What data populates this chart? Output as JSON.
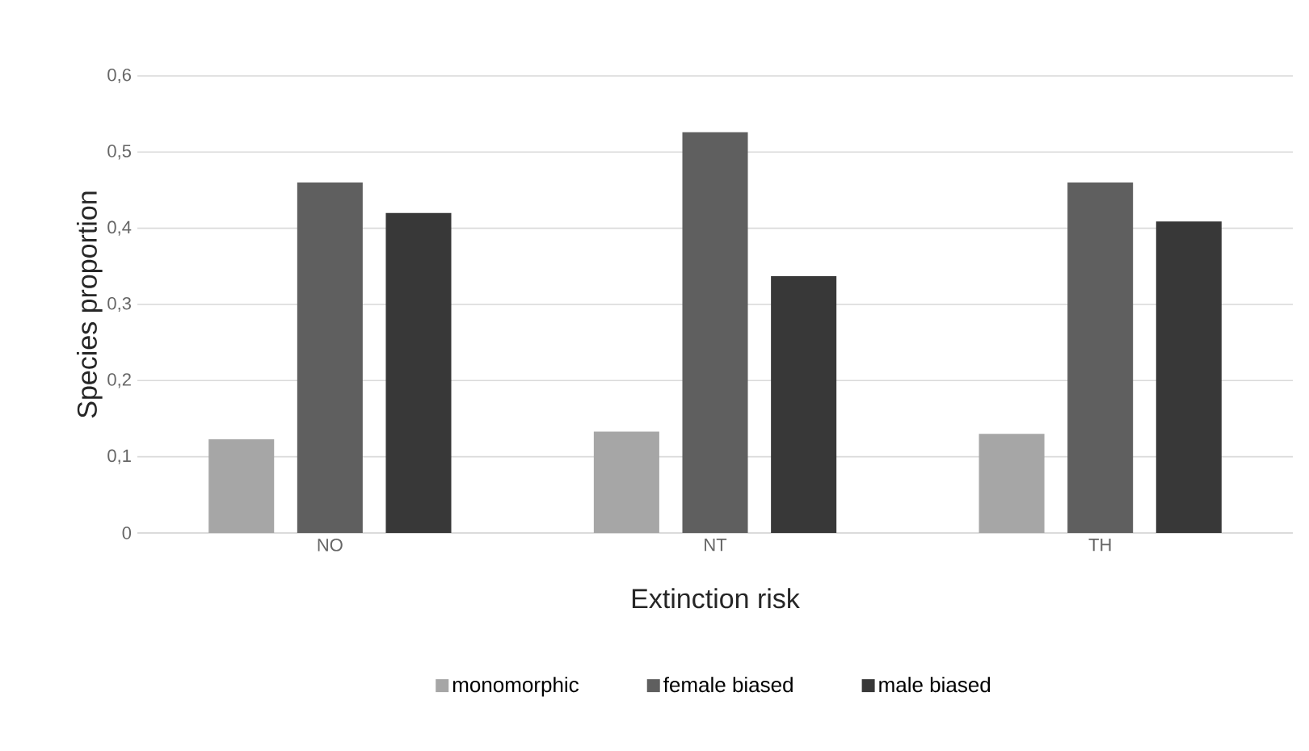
{
  "chart_data": {
    "type": "bar",
    "xlabel": "Extinction risk",
    "ylabel": "Species proportion",
    "categories": [
      "NO",
      "NT",
      "TH"
    ],
    "series": [
      {
        "name": "monomorphic",
        "color": "#a6a6a6",
        "values": [
          0.123,
          0.133,
          0.13
        ]
      },
      {
        "name": "female biased",
        "color": "#5f5f5f",
        "values": [
          0.46,
          0.526,
          0.46
        ]
      },
      {
        "name": "male biased",
        "color": "#383838",
        "values": [
          0.42,
          0.337,
          0.409
        ]
      }
    ],
    "ylim": [
      0,
      0.6
    ],
    "yticks": [
      0,
      {
        "value": 0.1,
        "label": "0,1"
      },
      {
        "value": 0.2,
        "label": "0,2"
      },
      {
        "value": 0.3,
        "label": "0,3"
      },
      {
        "value": 0.4,
        "label": "0,4"
      },
      {
        "value": 0.5,
        "label": "0,5"
      },
      {
        "value": 0.6,
        "label": "0,6"
      }
    ],
    "grid": "y",
    "legend": "bottom"
  }
}
